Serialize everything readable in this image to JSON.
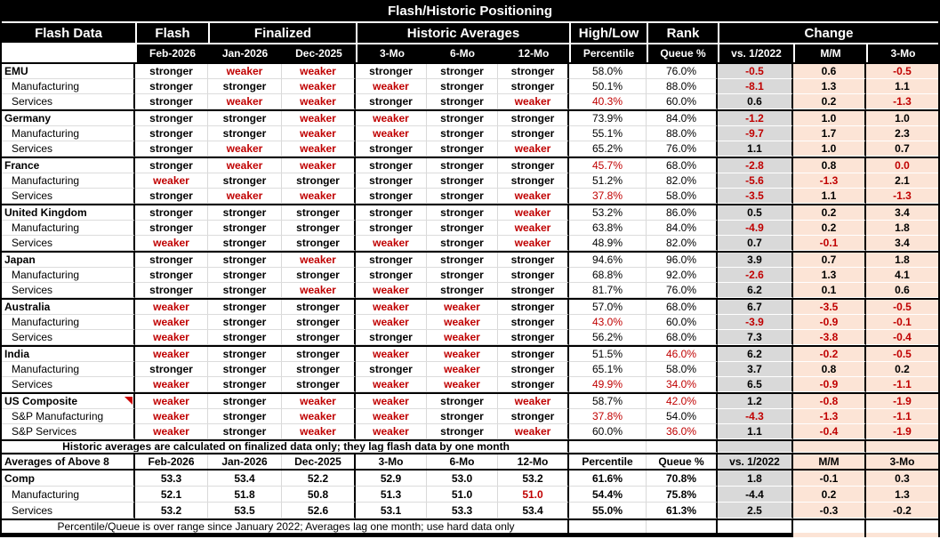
{
  "title": "Flash/Historic Positioning",
  "header": {
    "groups": [
      "Flash Data",
      "Flash",
      "Finalized",
      "Historic Averages",
      "High/Low",
      "Rank",
      "Change"
    ],
    "columns": [
      "",
      "Feb-2026",
      "Jan-2026",
      "Dec-2025",
      "3-Mo",
      "6-Mo",
      "12-Mo",
      "Percentile",
      "Queue %",
      "vs. 1/2022",
      "M/M",
      "3-Mo"
    ]
  },
  "colors": {
    "negative_text": "#c00000",
    "vs2022_bg": "#d9d9d9",
    "change_bg": "#fce4d6",
    "header_bg": "#000000"
  },
  "blocks": [
    {
      "rows": [
        {
          "label": "EMU",
          "sub": false,
          "marker": false,
          "values": [
            "stronger",
            "weaker",
            "weaker",
            "stronger",
            "stronger",
            "stronger",
            "58.0%",
            "76.0%",
            "-0.5",
            "0.6",
            "-0.5"
          ],
          "red": [
            1,
            2,
            8,
            10
          ]
        },
        {
          "label": "Manufacturing",
          "sub": true,
          "marker": false,
          "values": [
            "stronger",
            "stronger",
            "weaker",
            "weaker",
            "stronger",
            "stronger",
            "50.1%",
            "88.0%",
            "-8.1",
            "1.3",
            "1.1"
          ],
          "red": [
            2,
            3,
            8
          ]
        },
        {
          "label": "Services",
          "sub": true,
          "marker": false,
          "values": [
            "stronger",
            "weaker",
            "weaker",
            "stronger",
            "stronger",
            "weaker",
            "40.3%",
            "60.0%",
            "0.6",
            "0.2",
            "-1.3"
          ],
          "red": [
            1,
            2,
            5,
            6,
            10
          ]
        }
      ]
    },
    {
      "rows": [
        {
          "label": "Germany",
          "sub": false,
          "marker": false,
          "values": [
            "stronger",
            "stronger",
            "weaker",
            "weaker",
            "stronger",
            "stronger",
            "73.9%",
            "84.0%",
            "-1.2",
            "1.0",
            "1.0"
          ],
          "red": [
            2,
            3,
            8
          ]
        },
        {
          "label": "Manufacturing",
          "sub": true,
          "marker": false,
          "values": [
            "stronger",
            "stronger",
            "weaker",
            "weaker",
            "stronger",
            "stronger",
            "55.1%",
            "88.0%",
            "-9.7",
            "1.7",
            "2.3"
          ],
          "red": [
            2,
            3,
            8
          ]
        },
        {
          "label": "Services",
          "sub": true,
          "marker": false,
          "values": [
            "stronger",
            "weaker",
            "weaker",
            "stronger",
            "stronger",
            "weaker",
            "65.2%",
            "76.0%",
            "1.1",
            "1.0",
            "0.7"
          ],
          "red": [
            1,
            2,
            5
          ]
        }
      ]
    },
    {
      "rows": [
        {
          "label": "France",
          "sub": false,
          "marker": false,
          "values": [
            "stronger",
            "weaker",
            "weaker",
            "stronger",
            "stronger",
            "stronger",
            "45.7%",
            "68.0%",
            "-2.8",
            "0.8",
            "0.0"
          ],
          "red": [
            1,
            2,
            6,
            8,
            10
          ]
        },
        {
          "label": "Manufacturing",
          "sub": true,
          "marker": false,
          "values": [
            "weaker",
            "stronger",
            "stronger",
            "stronger",
            "stronger",
            "stronger",
            "51.2%",
            "82.0%",
            "-5.6",
            "-1.3",
            "2.1"
          ],
          "red": [
            0,
            8,
            9
          ]
        },
        {
          "label": "Services",
          "sub": true,
          "marker": false,
          "values": [
            "stronger",
            "weaker",
            "weaker",
            "stronger",
            "stronger",
            "weaker",
            "37.8%",
            "58.0%",
            "-3.5",
            "1.1",
            "-1.3"
          ],
          "red": [
            1,
            2,
            5,
            6,
            8,
            10
          ]
        }
      ]
    },
    {
      "rows": [
        {
          "label": "United Kingdom",
          "sub": false,
          "marker": false,
          "values": [
            "stronger",
            "stronger",
            "stronger",
            "stronger",
            "stronger",
            "weaker",
            "53.2%",
            "86.0%",
            "0.5",
            "0.2",
            "3.4"
          ],
          "red": [
            5
          ]
        },
        {
          "label": "Manufacturing",
          "sub": true,
          "marker": false,
          "values": [
            "stronger",
            "stronger",
            "stronger",
            "stronger",
            "stronger",
            "weaker",
            "63.8%",
            "84.0%",
            "-4.9",
            "0.2",
            "1.8"
          ],
          "red": [
            5,
            8
          ]
        },
        {
          "label": "Services",
          "sub": true,
          "marker": false,
          "values": [
            "weaker",
            "stronger",
            "stronger",
            "weaker",
            "stronger",
            "weaker",
            "48.9%",
            "82.0%",
            "0.7",
            "-0.1",
            "3.4"
          ],
          "red": [
            0,
            3,
            5,
            9
          ]
        }
      ]
    },
    {
      "rows": [
        {
          "label": "Japan",
          "sub": false,
          "marker": false,
          "values": [
            "stronger",
            "stronger",
            "weaker",
            "stronger",
            "stronger",
            "stronger",
            "94.6%",
            "96.0%",
            "3.9",
            "0.7",
            "1.8"
          ],
          "red": [
            2
          ]
        },
        {
          "label": "Manufacturing",
          "sub": true,
          "marker": false,
          "values": [
            "stronger",
            "stronger",
            "stronger",
            "stronger",
            "stronger",
            "stronger",
            "68.8%",
            "92.0%",
            "-2.6",
            "1.3",
            "4.1"
          ],
          "red": [
            8
          ]
        },
        {
          "label": "Services",
          "sub": true,
          "marker": false,
          "values": [
            "stronger",
            "stronger",
            "weaker",
            "weaker",
            "stronger",
            "stronger",
            "81.7%",
            "76.0%",
            "6.2",
            "0.1",
            "0.6"
          ],
          "red": [
            2,
            3
          ]
        }
      ]
    },
    {
      "rows": [
        {
          "label": "Australia",
          "sub": false,
          "marker": false,
          "values": [
            "weaker",
            "stronger",
            "stronger",
            "weaker",
            "weaker",
            "stronger",
            "57.0%",
            "68.0%",
            "6.7",
            "-3.5",
            "-0.5"
          ],
          "red": [
            0,
            3,
            4,
            9,
            10
          ]
        },
        {
          "label": "Manufacturing",
          "sub": true,
          "marker": false,
          "values": [
            "weaker",
            "stronger",
            "stronger",
            "weaker",
            "weaker",
            "stronger",
            "43.0%",
            "60.0%",
            "-3.9",
            "-0.9",
            "-0.1"
          ],
          "red": [
            0,
            3,
            4,
            6,
            8,
            9,
            10
          ]
        },
        {
          "label": "Services",
          "sub": true,
          "marker": false,
          "values": [
            "weaker",
            "stronger",
            "stronger",
            "stronger",
            "weaker",
            "stronger",
            "56.2%",
            "68.0%",
            "7.3",
            "-3.8",
            "-0.4"
          ],
          "red": [
            0,
            4,
            9,
            10
          ]
        }
      ]
    },
    {
      "rows": [
        {
          "label": "India",
          "sub": false,
          "marker": false,
          "values": [
            "weaker",
            "stronger",
            "stronger",
            "weaker",
            "weaker",
            "stronger",
            "51.5%",
            "46.0%",
            "6.2",
            "-0.2",
            "-0.5"
          ],
          "red": [
            0,
            3,
            4,
            7,
            9,
            10
          ]
        },
        {
          "label": "Manufacturing",
          "sub": true,
          "marker": false,
          "values": [
            "stronger",
            "stronger",
            "stronger",
            "stronger",
            "weaker",
            "stronger",
            "65.1%",
            "58.0%",
            "3.7",
            "0.8",
            "0.2"
          ],
          "red": [
            4
          ]
        },
        {
          "label": "Services",
          "sub": true,
          "marker": false,
          "values": [
            "weaker",
            "stronger",
            "stronger",
            "weaker",
            "weaker",
            "stronger",
            "49.9%",
            "34.0%",
            "6.5",
            "-0.9",
            "-1.1"
          ],
          "red": [
            0,
            3,
            4,
            6,
            7,
            9,
            10
          ]
        }
      ]
    },
    {
      "rows": [
        {
          "label": "US Composite",
          "sub": false,
          "marker": true,
          "values": [
            "weaker",
            "stronger",
            "weaker",
            "weaker",
            "stronger",
            "weaker",
            "58.7%",
            "42.0%",
            "1.2",
            "-0.8",
            "-1.9"
          ],
          "red": [
            0,
            2,
            3,
            5,
            7,
            9,
            10
          ]
        },
        {
          "label": "S&P Manufacturing",
          "sub": true,
          "marker": false,
          "values": [
            "weaker",
            "stronger",
            "weaker",
            "weaker",
            "stronger",
            "stronger",
            "37.8%",
            "54.0%",
            "-4.3",
            "-1.3",
            "-1.1"
          ],
          "red": [
            0,
            2,
            3,
            6,
            8,
            9,
            10
          ]
        },
        {
          "label": "S&P Services",
          "sub": true,
          "marker": false,
          "values": [
            "weaker",
            "stronger",
            "weaker",
            "weaker",
            "stronger",
            "weaker",
            "60.0%",
            "36.0%",
            "1.1",
            "-0.4",
            "-1.9"
          ],
          "red": [
            0,
            2,
            3,
            5,
            7,
            9,
            10
          ]
        }
      ]
    }
  ],
  "notes": {
    "historic": "Historic averages are calculated on finalized data only; they lag flash data by one month",
    "footer": "Percentile/Queue is over range since January 2022; Averages lag one month; use hard data only"
  },
  "averages": {
    "title": "Averages of Above 8",
    "columns": [
      "Feb-2026",
      "Jan-2026",
      "Dec-2025",
      "3-Mo",
      "6-Mo",
      "12-Mo",
      "Percentile",
      "Queue %",
      "vs. 1/2022",
      "M/M",
      "3-Mo"
    ],
    "rows": [
      {
        "label": "Comp",
        "sub": false,
        "marker": false,
        "values": [
          "53.3",
          "53.4",
          "52.2",
          "52.9",
          "53.0",
          "53.2",
          "61.6%",
          "70.8%",
          "1.8",
          "-0.1",
          "0.3"
        ],
        "red": []
      },
      {
        "label": "Manufacturing",
        "sub": true,
        "marker": false,
        "values": [
          "52.1",
          "51.8",
          "50.8",
          "51.3",
          "51.0",
          "51.0",
          "54.4%",
          "75.8%",
          "-4.4",
          "0.2",
          "1.3"
        ],
        "red": [
          5
        ]
      },
      {
        "label": "Services",
        "sub": true,
        "marker": false,
        "values": [
          "53.2",
          "53.5",
          "52.6",
          "53.1",
          "53.3",
          "53.4",
          "55.0%",
          "61.3%",
          "2.5",
          "-0.3",
          "-0.2"
        ],
        "red": []
      }
    ]
  }
}
